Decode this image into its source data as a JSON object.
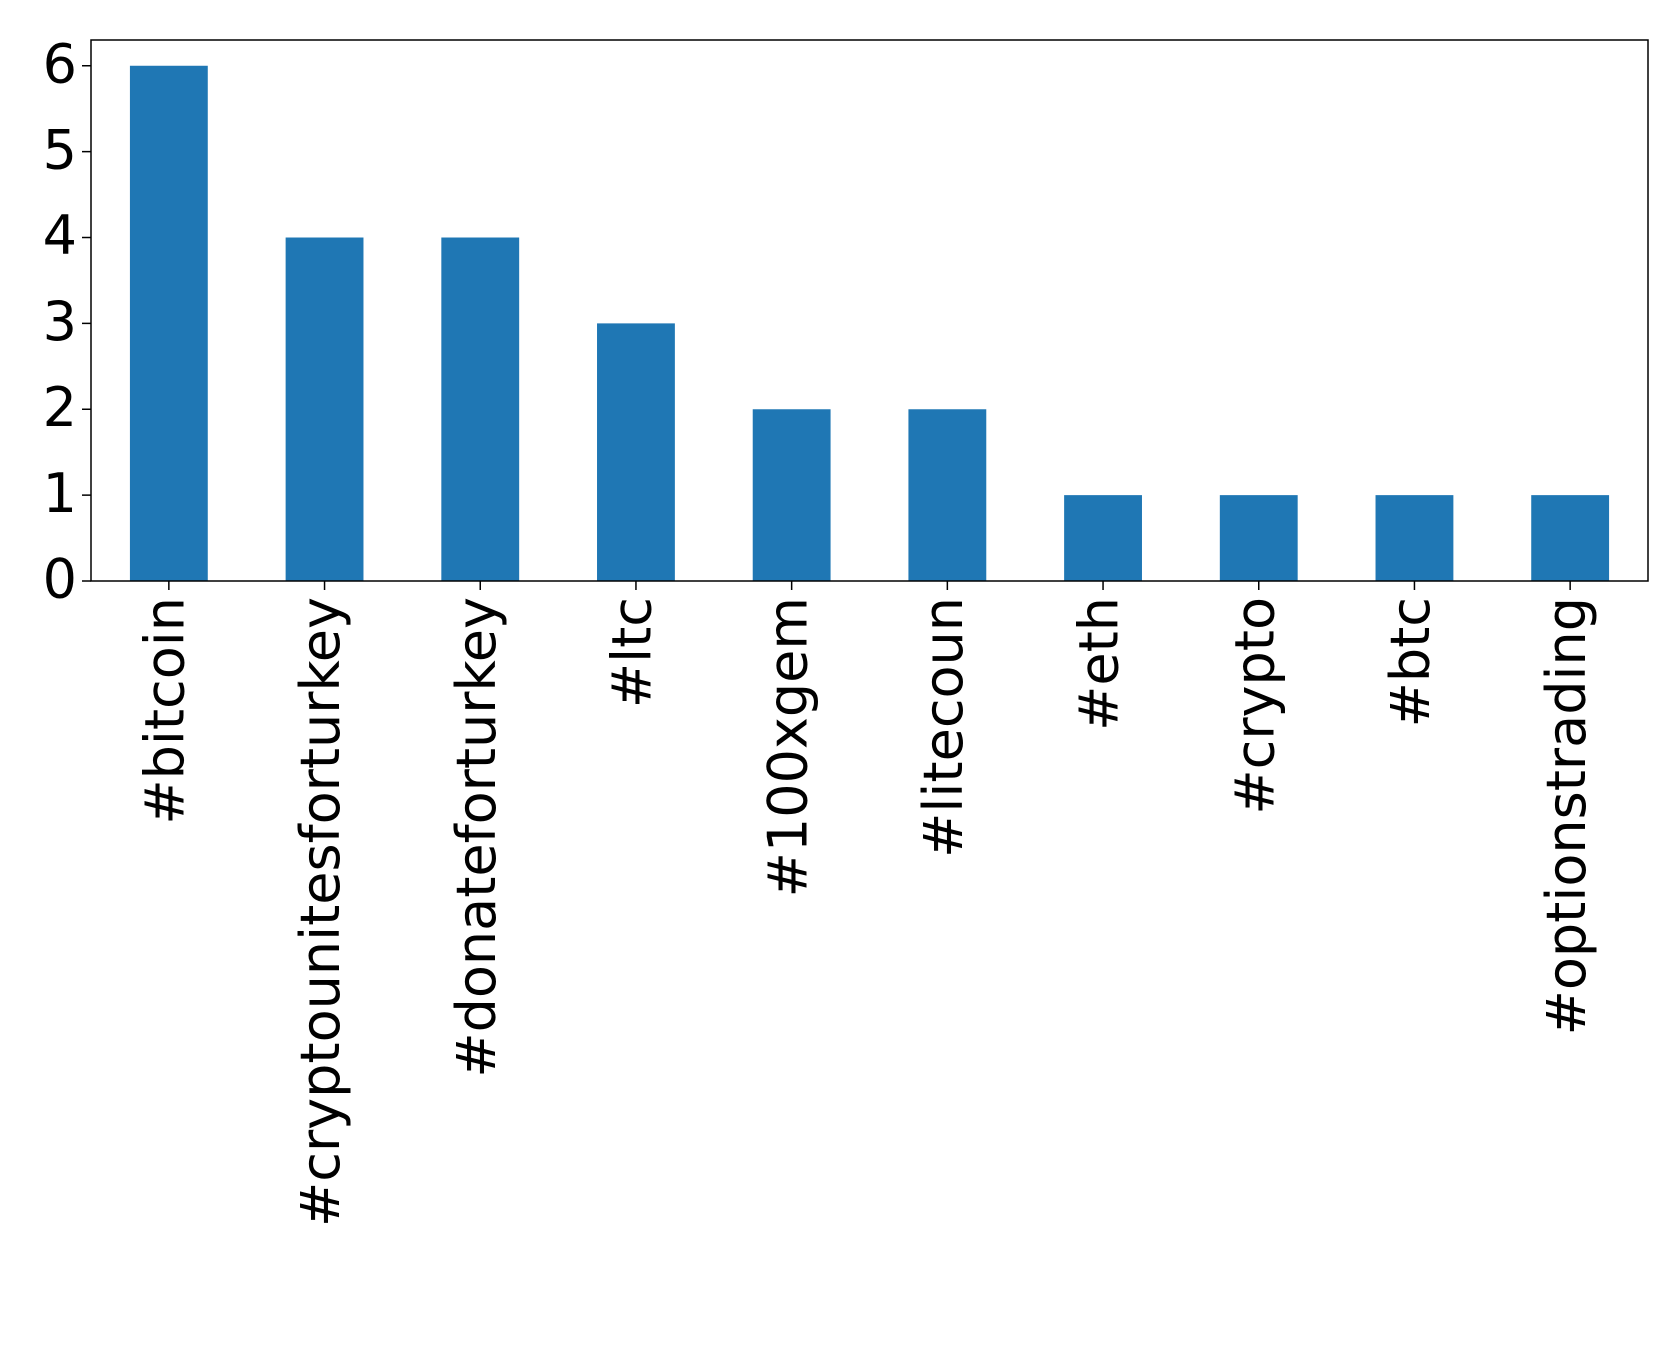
{
  "chart_data": {
    "type": "bar",
    "categories": [
      "#bitcoin",
      "#cryptounitesforturkey",
      "#donateforturkey",
      "#ltc",
      "#100xgem",
      "#litecoun",
      "#eth",
      "#crypto",
      "#btc",
      "#optionstrading"
    ],
    "values": [
      6,
      4,
      4,
      3,
      2,
      2,
      1,
      1,
      1,
      1
    ],
    "color": "#1f77b4",
    "ylim": [
      0,
      6.3
    ],
    "yticks": [
      0,
      1,
      2,
      3,
      4,
      5,
      6
    ],
    "grid": false
  }
}
